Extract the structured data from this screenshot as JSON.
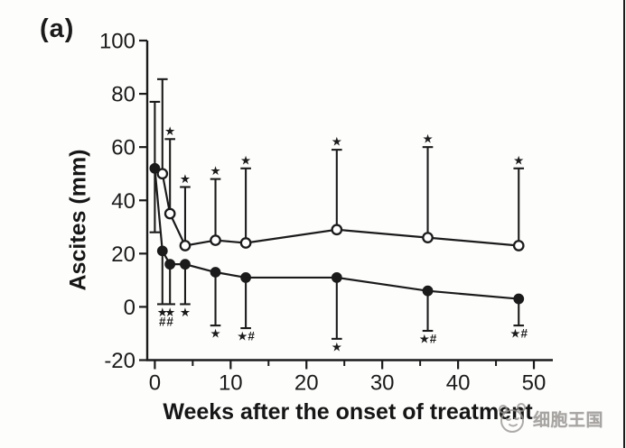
{
  "panel_label": "(a)",
  "watermark": {
    "text": "细胞王国",
    "mascot_icon": "cell-mascot",
    "color": "#8f8c89"
  },
  "chart_data": {
    "type": "line",
    "title": "",
    "xlabel": "Weeks after the onset of treatment",
    "ylabel": "Ascites (mm)",
    "xlim": [
      -1,
      52.5
    ],
    "ylim": [
      -20,
      100
    ],
    "x_ticks": [
      0,
      10,
      20,
      30,
      40,
      50
    ],
    "x_minor_ticks": [
      5,
      15,
      25,
      35,
      45
    ],
    "y_ticks": [
      100,
      80,
      60,
      40,
      20,
      0,
      -20
    ],
    "grid": false,
    "legend": "none",
    "ink_color": "#1b1b1b",
    "significance_symbols": {
      "star": "★",
      "hash": "#"
    },
    "series": [
      {
        "name": "open-circle-group",
        "marker": "open-circle",
        "points": [
          {
            "week": 1,
            "value": 50,
            "err_up": 35.5
          },
          {
            "week": 2,
            "value": 35,
            "err_up": 28,
            "sig_above": "★"
          },
          {
            "week": 4,
            "value": 23,
            "err_up": 22,
            "sig_above": "★"
          },
          {
            "week": 8,
            "value": 25,
            "err_up": 23,
            "sig_above": "★"
          },
          {
            "week": 12,
            "value": 24,
            "err_up": 28,
            "sig_above": "★"
          },
          {
            "week": 24,
            "value": 29,
            "err_up": 30,
            "sig_above": "★"
          },
          {
            "week": 36,
            "value": 26,
            "err_up": 34,
            "sig_above": "★"
          },
          {
            "week": 48,
            "value": 23,
            "err_up": 29,
            "sig_above": "★"
          }
        ]
      },
      {
        "name": "filled-circle-group",
        "marker": "filled-circle",
        "points": [
          {
            "week": 0,
            "value": 52,
            "err_up": 25,
            "err_down": 24
          },
          {
            "week": 1,
            "value": 21,
            "err_down": 20,
            "sig_below": [
              "★",
              "#"
            ]
          },
          {
            "week": 2,
            "value": 16,
            "err_down": 15,
            "sig_below": [
              "★",
              "#"
            ]
          },
          {
            "week": 4,
            "value": 16,
            "err_down": 15,
            "sig_below": [
              "★"
            ]
          },
          {
            "week": 8,
            "value": 13,
            "err_down": 20,
            "sig_below": [
              "★"
            ]
          },
          {
            "week": 12,
            "value": 11,
            "err_down": 19,
            "sig_below": [
              "★#"
            ]
          },
          {
            "week": 24,
            "value": 11,
            "err_down": 23,
            "sig_below": [
              "★"
            ]
          },
          {
            "week": 36,
            "value": 6,
            "err_down": 15,
            "sig_below": [
              "★#"
            ]
          },
          {
            "week": 48,
            "value": 3,
            "err_down": 10,
            "sig_below": [
              "★#"
            ]
          }
        ]
      }
    ]
  }
}
